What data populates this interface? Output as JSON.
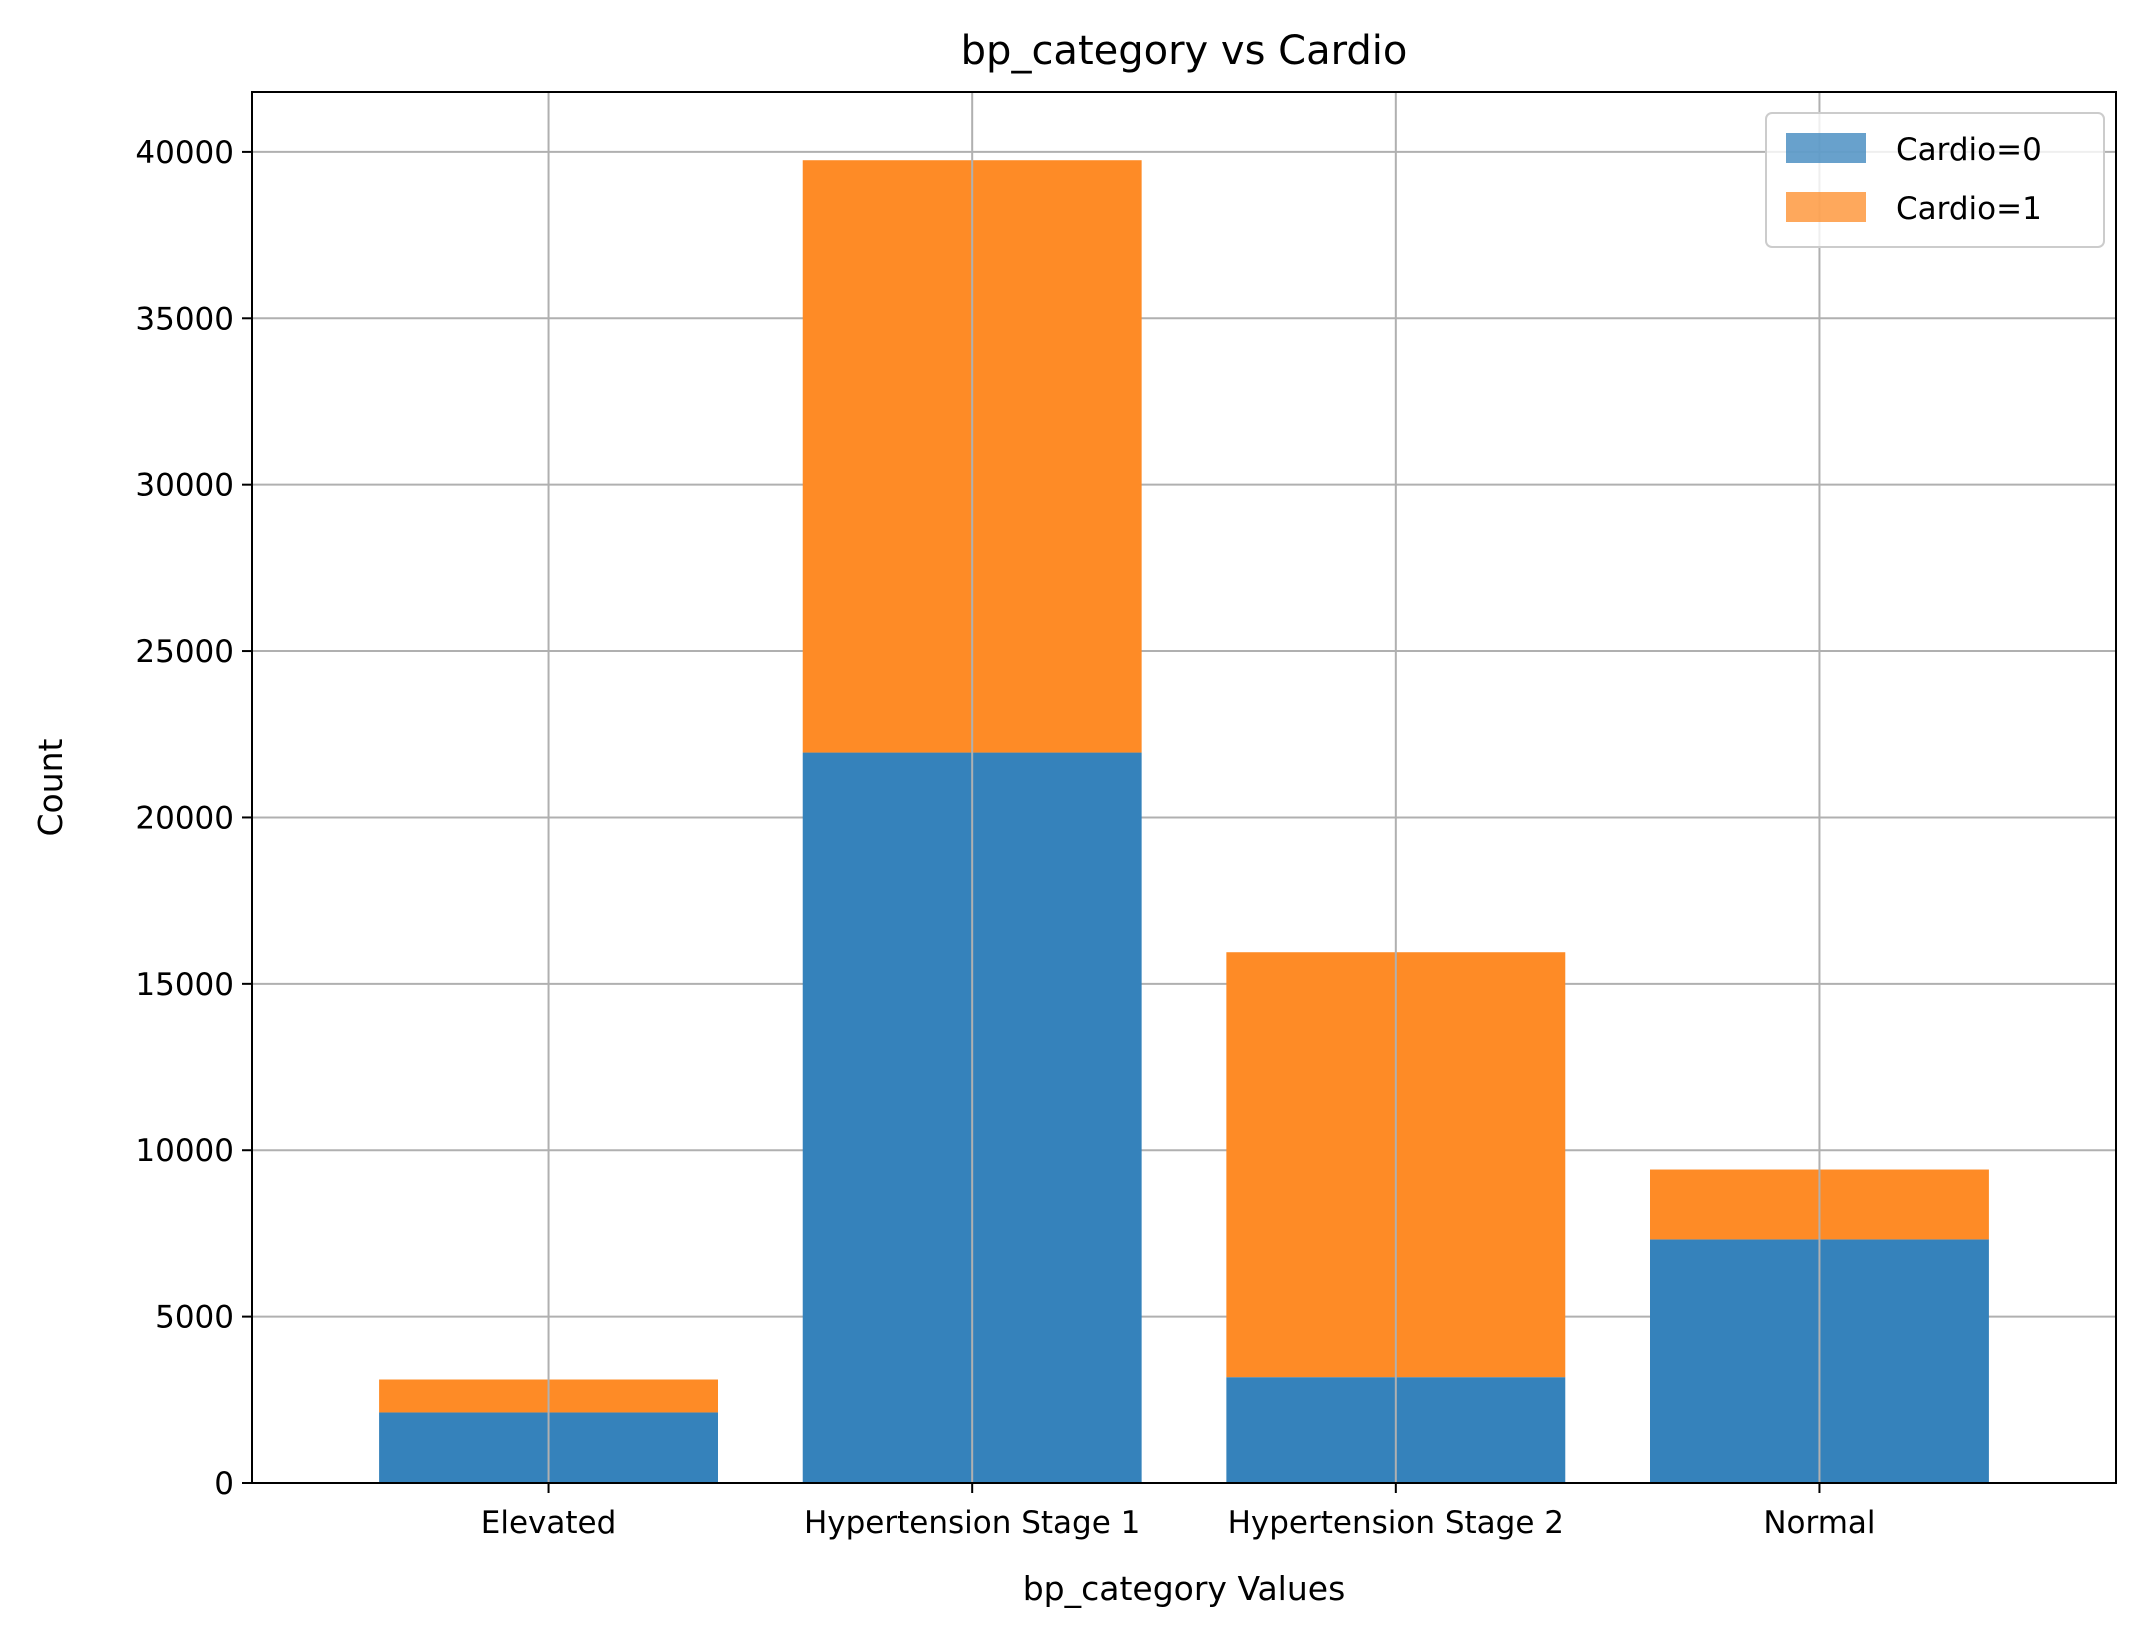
{
  "chart_data": {
    "type": "bar",
    "stacked": true,
    "title": "bp_category vs Cardio",
    "xlabel": "bp_category Values",
    "ylabel": "Count",
    "categories": [
      "Elevated",
      "Hypertension Stage 1",
      "Hypertension Stage 2",
      "Normal"
    ],
    "series": [
      {
        "name": "Cardio=0",
        "values": [
          2120,
          21950,
          3180,
          7320
        ],
        "color": "#3582bb"
      },
      {
        "name": "Cardio=1",
        "values": [
          990,
          17800,
          12770,
          2100
        ],
        "color": "#fe8b26"
      }
    ],
    "ylim": [
      0,
      41800
    ],
    "yticks": [
      0,
      5000,
      10000,
      15000,
      20000,
      25000,
      30000,
      35000,
      40000
    ],
    "grid": true,
    "legend_position": "top-right"
  }
}
